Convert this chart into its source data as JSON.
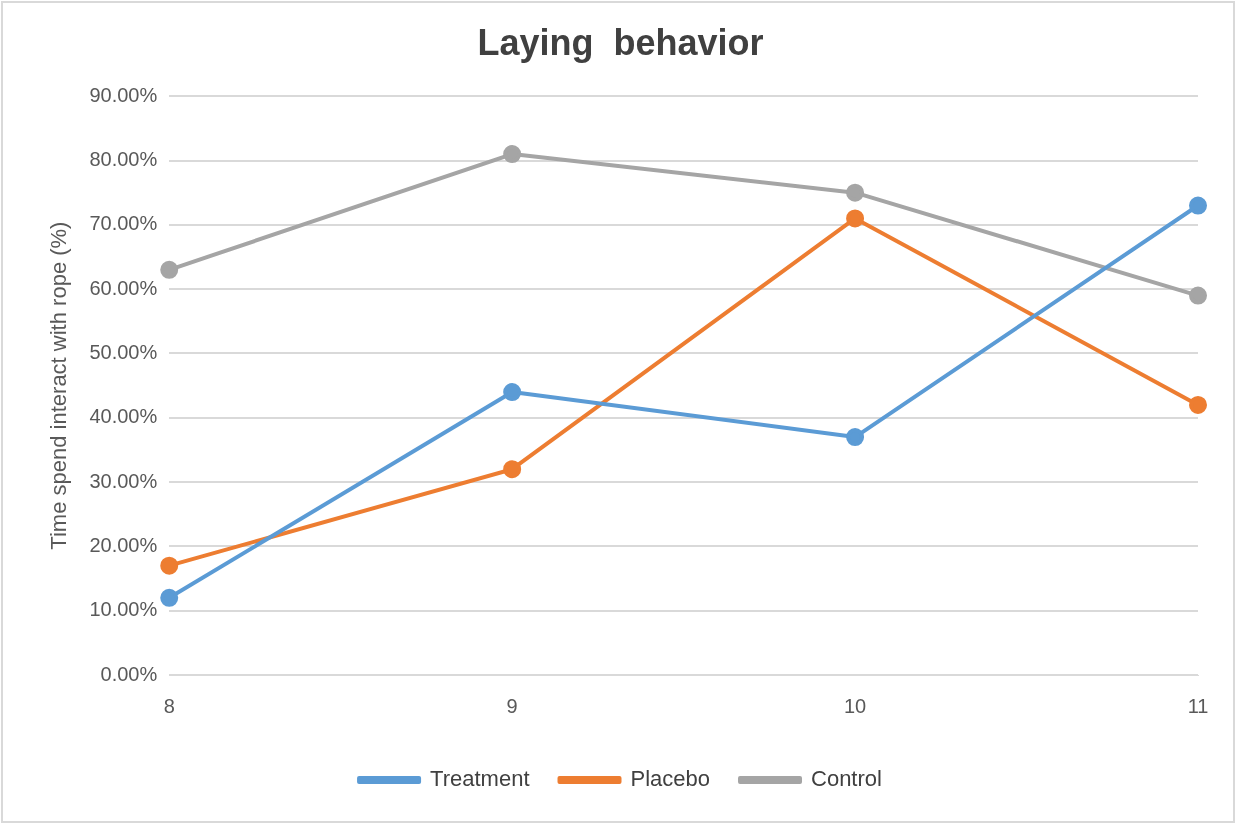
{
  "chart_data": {
    "type": "line",
    "title": "Laying  behavior",
    "ylabel": "Time spend interact with rope (%)",
    "categories": [
      "8",
      "9",
      "10",
      "11"
    ],
    "series": [
      {
        "name": "Treatment",
        "color": "#5b9bd5",
        "values": [
          12,
          44,
          37,
          73
        ]
      },
      {
        "name": "Placebo",
        "color": "#ed7d31",
        "values": [
          17,
          32,
          71,
          42
        ]
      },
      {
        "name": "Control",
        "color": "#a5a5a5",
        "values": [
          63,
          81,
          75,
          59
        ]
      }
    ],
    "ylim": [
      0,
      90
    ],
    "yticks": [
      {
        "value": 0,
        "label": "0.00%"
      },
      {
        "value": 10,
        "label": "10.00%"
      },
      {
        "value": 20,
        "label": "20.00%"
      },
      {
        "value": 30,
        "label": "30.00%"
      },
      {
        "value": 40,
        "label": "40.00%"
      },
      {
        "value": 50,
        "label": "50.00%"
      },
      {
        "value": 60,
        "label": "60.00%"
      },
      {
        "value": 70,
        "label": "70.00%"
      },
      {
        "value": 80,
        "label": "80.00%"
      },
      {
        "value": 90,
        "label": "90.00%"
      }
    ],
    "grid": "y",
    "legend": "bottom",
    "marker": "circle",
    "line_style": "solid"
  }
}
